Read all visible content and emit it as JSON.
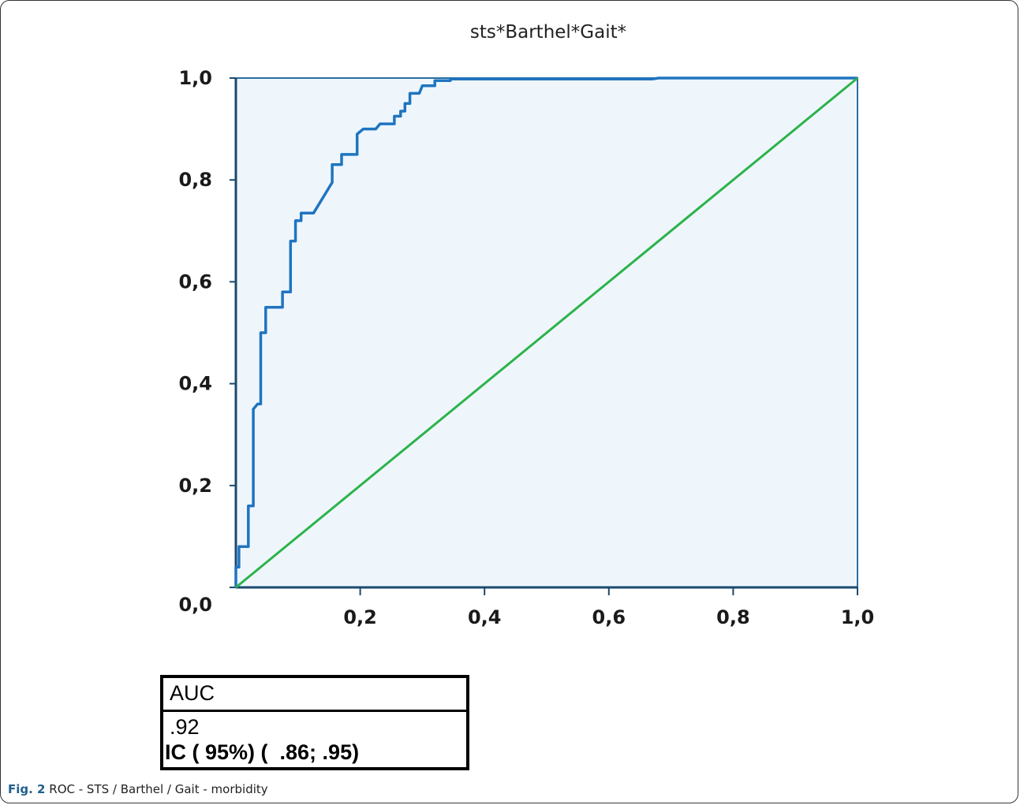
{
  "chart_data": {
    "type": "line",
    "title": "sts*Barthel*Gait*",
    "xlim": [
      0,
      1
    ],
    "ylim": [
      0,
      1
    ],
    "x_ticks": [
      "0,2",
      "0,4",
      "0,6",
      "0,8",
      "1,0"
    ],
    "y_ticks": [
      "0,0",
      "0,2",
      "0,4",
      "0,6",
      "0,8",
      "1,0"
    ],
    "grid": false,
    "series": [
      {
        "values": [
          [
            0.0,
            0.0
          ],
          [
            0.0,
            0.04
          ],
          [
            0.005,
            0.04
          ],
          [
            0.005,
            0.08
          ],
          [
            0.02,
            0.08
          ],
          [
            0.02,
            0.16
          ],
          [
            0.028,
            0.16
          ],
          [
            0.028,
            0.35
          ],
          [
            0.035,
            0.36
          ],
          [
            0.04,
            0.36
          ],
          [
            0.04,
            0.5
          ],
          [
            0.048,
            0.5
          ],
          [
            0.048,
            0.55
          ],
          [
            0.075,
            0.55
          ],
          [
            0.075,
            0.58
          ],
          [
            0.088,
            0.58
          ],
          [
            0.088,
            0.68
          ],
          [
            0.096,
            0.68
          ],
          [
            0.096,
            0.72
          ],
          [
            0.105,
            0.72
          ],
          [
            0.105,
            0.735
          ],
          [
            0.125,
            0.735
          ],
          [
            0.155,
            0.795
          ],
          [
            0.155,
            0.83
          ],
          [
            0.17,
            0.83
          ],
          [
            0.17,
            0.85
          ],
          [
            0.18,
            0.85
          ],
          [
            0.185,
            0.85
          ],
          [
            0.195,
            0.85
          ],
          [
            0.195,
            0.89
          ],
          [
            0.205,
            0.9
          ],
          [
            0.225,
            0.9
          ],
          [
            0.232,
            0.91
          ],
          [
            0.255,
            0.91
          ],
          [
            0.255,
            0.925
          ],
          [
            0.265,
            0.925
          ],
          [
            0.265,
            0.935
          ],
          [
            0.272,
            0.935
          ],
          [
            0.272,
            0.95
          ],
          [
            0.28,
            0.95
          ],
          [
            0.28,
            0.97
          ],
          [
            0.295,
            0.97
          ],
          [
            0.3,
            0.985
          ],
          [
            0.32,
            0.985
          ],
          [
            0.32,
            0.995
          ],
          [
            0.345,
            0.995
          ],
          [
            0.345,
            0.998
          ],
          [
            0.67,
            0.998
          ],
          [
            0.68,
            1.0
          ],
          [
            1.0,
            1.0
          ]
        ],
        "color": "#1f74c0"
      },
      {
        "values": [
          [
            0.0,
            0.0
          ],
          [
            1.0,
            1.0
          ]
        ],
        "color": "#2cb34a"
      }
    ],
    "plot_background": "#eef6fc"
  },
  "auc_table": {
    "header": "AUC",
    "value": ".92",
    "ci": "IC ( 95%) (  .86; .95)"
  },
  "caption": {
    "label": "Fig. 2",
    "text": "ROC - STS / Barthel / Gait - morbidity"
  }
}
